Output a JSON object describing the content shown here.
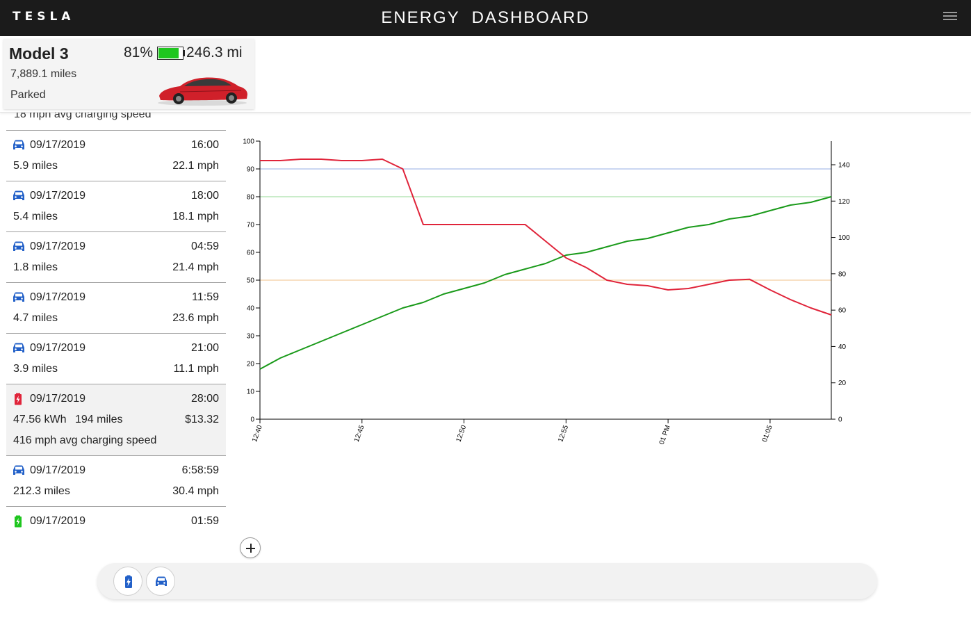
{
  "app": {
    "logo_text": "TESLA",
    "title": "ENERGY  DASHBOARD"
  },
  "vehicle": {
    "name": "Model 3",
    "odometer": "7,889.1 miles",
    "state": "Parked",
    "battery_percent_label": "81%",
    "battery_level": 0.81,
    "battery_color": "#1fc61f",
    "range": "246.3 mi",
    "car_color": "#d0202a"
  },
  "trips": {
    "partial_top_text": "18 mph avg charging speed",
    "items": [
      {
        "type": "drive",
        "icon": "car-icon",
        "date": "09/17/2019",
        "duration": "16:00",
        "distance": "5.9 miles",
        "speed": "22.1 mph"
      },
      {
        "type": "drive",
        "icon": "car-icon",
        "date": "09/17/2019",
        "duration": "18:00",
        "distance": "5.4 miles",
        "speed": "18.1 mph"
      },
      {
        "type": "drive",
        "icon": "car-icon",
        "date": "09/17/2019",
        "duration": "04:59",
        "distance": "1.8 miles",
        "speed": "21.4 mph"
      },
      {
        "type": "drive",
        "icon": "car-icon",
        "date": "09/17/2019",
        "duration": "11:59",
        "distance": "4.7 miles",
        "speed": "23.6 mph"
      },
      {
        "type": "drive",
        "icon": "car-icon",
        "date": "09/17/2019",
        "duration": "21:00",
        "distance": "3.9 miles",
        "speed": "11.1 mph"
      },
      {
        "type": "charge",
        "icon": "battery-charging-icon",
        "icon_color": "#e0243a",
        "selected": true,
        "date": "09/17/2019",
        "duration": "28:00",
        "energy": "47.56 kWh",
        "added": "194 miles",
        "cost": "$13.32",
        "avg_speed": "416 mph avg charging speed"
      },
      {
        "type": "drive",
        "icon": "car-icon",
        "date": "09/17/2019",
        "duration": "6:58:59",
        "distance": "212.3 miles",
        "speed": "30.4 mph"
      },
      {
        "type": "charge",
        "icon": "battery-charging-icon",
        "icon_color": "#1fc61f",
        "date": "09/17/2019",
        "duration": "01:59"
      }
    ]
  },
  "chart_data": {
    "type": "line",
    "x_labels": [
      "12:40",
      "12:45",
      "12:50",
      "12:55",
      "01 PM",
      "01:05"
    ],
    "x_ticks_min": [
      0,
      5,
      10,
      15,
      20,
      25
    ],
    "x_range_min": [
      0,
      28
    ],
    "y_left": {
      "ticks": [
        0,
        10,
        20,
        30,
        40,
        50,
        60,
        70,
        80,
        90,
        100
      ],
      "range": [
        0,
        100
      ]
    },
    "y_right": {
      "ticks": [
        0,
        20,
        40,
        60,
        80,
        100,
        120,
        140
      ],
      "range": [
        0,
        153
      ]
    },
    "reference_lines": [
      {
        "value": 90,
        "color": "#b8c8ee"
      },
      {
        "value": 80,
        "color": "#b8e6b8"
      },
      {
        "value": 50,
        "color": "#f5d5b0"
      }
    ],
    "series": [
      {
        "color": "#1a9a1a",
        "axis": "left",
        "x": [
          0,
          1,
          2,
          3,
          4,
          5,
          6,
          7,
          8,
          9,
          10,
          11,
          12,
          13,
          14,
          15,
          16,
          17,
          18,
          19,
          20,
          21,
          22,
          23,
          24,
          25,
          26,
          27,
          28
        ],
        "y": [
          18,
          22,
          25,
          28,
          31,
          34,
          37,
          40,
          42,
          45,
          47,
          49,
          52,
          54,
          56,
          59,
          60,
          62,
          64,
          65,
          67,
          69,
          70,
          72,
          73,
          75,
          77,
          78,
          80
        ]
      },
      {
        "color": "#e0243a",
        "axis": "left",
        "x": [
          0,
          1,
          2,
          3,
          4,
          5,
          6,
          7,
          8,
          9,
          10,
          11,
          12,
          13,
          14,
          15,
          16,
          17,
          18,
          19,
          20,
          21,
          22,
          23,
          24,
          25,
          26,
          27,
          28
        ],
        "y": [
          93,
          93,
          93.5,
          93.5,
          93,
          93,
          93.5,
          90,
          70,
          70,
          70,
          70,
          70,
          70,
          64,
          58,
          54.5,
          50,
          48.5,
          48,
          46.5,
          47,
          48.5,
          50,
          50.3,
          46.5,
          43,
          40,
          37.5
        ]
      }
    ]
  },
  "controls": {
    "add_icon": "plus-icon",
    "filters": [
      {
        "icon": "battery-charging-icon",
        "color": "#2260c8"
      },
      {
        "icon": "car-icon",
        "color": "#2260c8"
      }
    ]
  }
}
